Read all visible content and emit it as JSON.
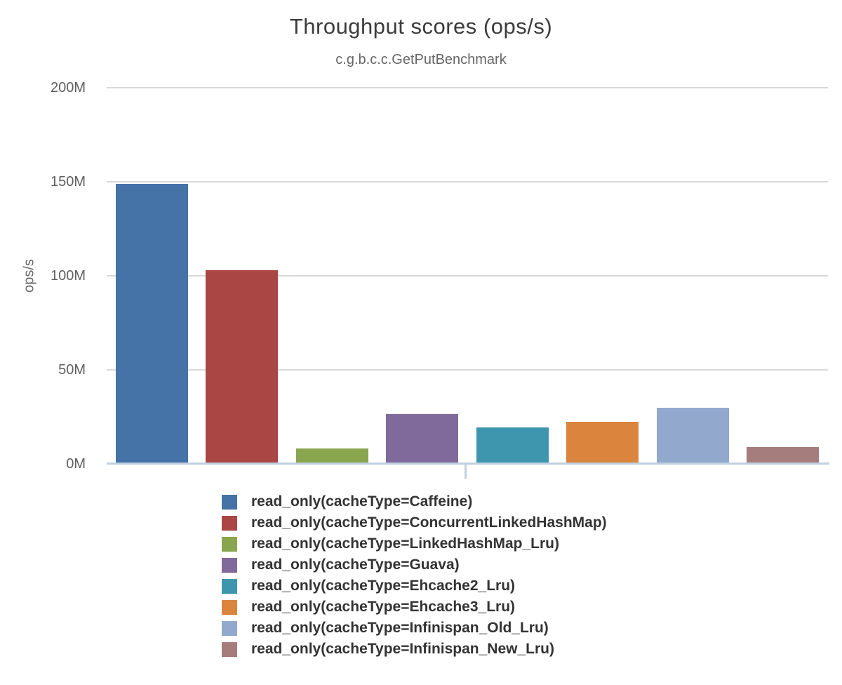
{
  "chart_data": {
    "type": "bar",
    "title": "Throughput scores (ops/s)",
    "subtitle": "c.g.b.c.c.GetPutBenchmark",
    "xlabel": "",
    "ylabel": "ops/s",
    "ylim_M": [
      0,
      200
    ],
    "grid": true,
    "legend_position": "bottom-left",
    "yaxis_ticks": {
      "labels": [
        "0M",
        "50M",
        "100M",
        "150M",
        "200M"
      ],
      "values_M": [
        0,
        50,
        100,
        150,
        200
      ]
    },
    "series": [
      {
        "name": "read_only(cacheType=Caffeine)",
        "key": "caffeine",
        "color": "#4572a7",
        "value_M": 148.5
      },
      {
        "name": "read_only(cacheType=ConcurrentLinkedHashMap)",
        "key": "concurrentlinkedhashmap",
        "color": "#aa4643",
        "value_M": 102.5
      },
      {
        "name": "read_only(cacheType=LinkedHashMap_Lru)",
        "key": "linkedhashmap-lru",
        "color": "#89a54e",
        "value_M": 8
      },
      {
        "name": "read_only(cacheType=Guava)",
        "key": "guava",
        "color": "#80699b",
        "value_M": 26
      },
      {
        "name": "read_only(cacheType=Ehcache2_Lru)",
        "key": "ehcache2-lru",
        "color": "#3d96ae",
        "value_M": 19
      },
      {
        "name": "read_only(cacheType=Ehcache3_Lru)",
        "key": "ehcache3-lru",
        "color": "#db843d",
        "value_M": 22
      },
      {
        "name": "read_only(cacheType=Infinispan_Old_Lru)",
        "key": "infinispan-old-lru",
        "color": "#92a8cd",
        "value_M": 29.5
      },
      {
        "name": "read_only(cacheType=Infinispan_New_Lru)",
        "key": "infinispan-new-lru",
        "color": "#a47d7c",
        "value_M": 8.5
      }
    ]
  },
  "colors": {
    "background": "#ffffff",
    "title_text": "#3c3c3c",
    "subtitle_text": "#666666",
    "tick_label_text": "#606060",
    "gridline": "#d9d9d9",
    "axis_line": "#c0d0e0",
    "legend_text": "#333333"
  }
}
